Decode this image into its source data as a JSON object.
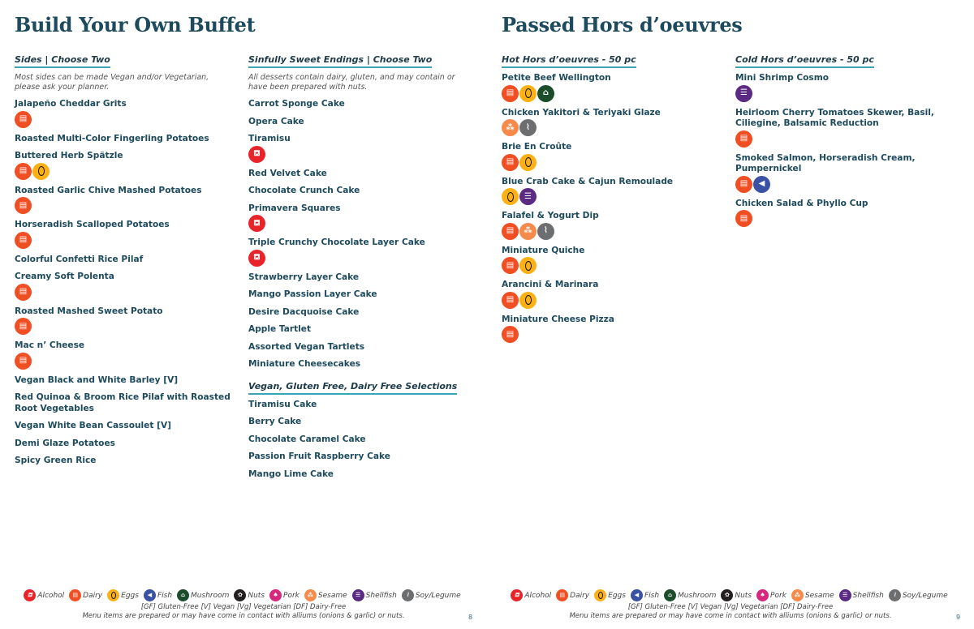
{
  "icons": {
    "alcohol": {
      "label": "Alcohol",
      "color": "#e8232a",
      "glyph": "⛾"
    },
    "dairy": {
      "label": "Dairy",
      "color": "#f04e23",
      "glyph": "▤"
    },
    "eggs": {
      "label": "Eggs",
      "color": "#fbb116",
      "glyph": ""
    },
    "fish": {
      "label": "Fish",
      "color": "#3a52a3",
      "glyph": "◀"
    },
    "mushroom": {
      "label": "Mushroom",
      "color": "#1b4d2b",
      "glyph": "⌂"
    },
    "nuts": {
      "label": "Nuts",
      "color": "#231f20",
      "glyph": "✿"
    },
    "pork": {
      "label": "Pork",
      "color": "#d6287d",
      "glyph": "♠"
    },
    "sesame": {
      "label": "Sesame",
      "color": "#f58a4b",
      "glyph": "⁂"
    },
    "shellfish": {
      "label": "Shellfish",
      "color": "#5b2a82",
      "glyph": "☰"
    },
    "soy": {
      "label": "Soy/Legume",
      "color": "#6d6e70",
      "glyph": "⌇"
    }
  },
  "legend_order": [
    "alcohol",
    "dairy",
    "eggs",
    "fish",
    "mushroom",
    "nuts",
    "pork",
    "sesame",
    "shellfish",
    "soy"
  ],
  "left_page": {
    "title": "Build Your Own Buffet",
    "page_number": "8",
    "columns": [
      {
        "sections": [
          {
            "heading": "Sides | Choose Two",
            "note": "Most sides can be made Vegan and/or Vegetarian, please ask your planner.",
            "items": [
              {
                "name": "Jalapeño Cheddar Grits",
                "icons": [
                  "dairy"
                ]
              },
              {
                "name": "Roasted Multi-Color Fingerling Potatoes",
                "icons": []
              },
              {
                "name": "Buttered Herb Spätzle",
                "icons": [
                  "dairy",
                  "eggs"
                ]
              },
              {
                "name": "Roasted Garlic Chive Mashed Potatoes",
                "icons": [
                  "dairy"
                ]
              },
              {
                "name": "Horseradish Scalloped Potatoes",
                "icons": [
                  "dairy"
                ]
              },
              {
                "name": "Colorful Confetti Rice Pilaf",
                "icons": []
              },
              {
                "name": "Creamy Soft Polenta",
                "icons": [
                  "dairy"
                ]
              },
              {
                "name": "Roasted Mashed Sweet Potato",
                "icons": [
                  "dairy"
                ]
              },
              {
                "name": "Mac n’ Cheese",
                "icons": [
                  "dairy"
                ]
              },
              {
                "name": "Vegan Black and White Barley [V]",
                "icons": []
              },
              {
                "name": "Red Quinoa & Broom Rice Pilaf with Roasted Root Vegetables",
                "icons": []
              },
              {
                "name": "Vegan White Bean Cassoulet [V]",
                "icons": []
              },
              {
                "name": "Demi Glaze Potatoes",
                "icons": []
              },
              {
                "name": "Spicy Green Rice",
                "icons": []
              }
            ]
          }
        ]
      },
      {
        "sections": [
          {
            "heading": "Sinfully Sweet Endings | Choose Two",
            "note": "All desserts contain dairy, gluten, and may contain or have been prepared with nuts.",
            "items": [
              {
                "name": "Carrot Sponge Cake",
                "icons": []
              },
              {
                "name": "Opera Cake",
                "icons": []
              },
              {
                "name": "Tiramisu",
                "icons": [
                  "alcohol"
                ]
              },
              {
                "name": "Red Velvet Cake",
                "icons": []
              },
              {
                "name": "Chocolate Crunch Cake",
                "icons": []
              },
              {
                "name": "Primavera Squares",
                "icons": [
                  "alcohol"
                ]
              },
              {
                "name": "Triple Crunchy Chocolate Layer Cake",
                "icons": [
                  "alcohol"
                ]
              },
              {
                "name": "Strawberry Layer Cake",
                "icons": []
              },
              {
                "name": "Mango Passion Layer Cake",
                "icons": []
              },
              {
                "name": "Desire Dacquoise Cake",
                "icons": []
              },
              {
                "name": "Apple Tartlet",
                "icons": []
              },
              {
                "name": "Assorted Vegan Tartlets",
                "icons": []
              },
              {
                "name": "Miniature Cheesecakes",
                "icons": []
              }
            ]
          },
          {
            "heading": "Vegan, Gluten Free, Dairy Free Selections",
            "items": [
              {
                "name": "Tiramisu Cake",
                "icons": []
              },
              {
                "name": "Berry Cake",
                "icons": []
              },
              {
                "name": "Chocolate Caramel Cake",
                "icons": []
              },
              {
                "name": "Passion Fruit Raspberry Cake",
                "icons": []
              },
              {
                "name": "Mango Lime Cake",
                "icons": []
              }
            ]
          }
        ]
      }
    ]
  },
  "right_page": {
    "title": "Passed Hors d’oeuvres",
    "page_number": "9",
    "columns": [
      {
        "sections": [
          {
            "heading": "Hot Hors d’oeuvres - 50 pc",
            "items": [
              {
                "name": "Petite Beef Wellington",
                "icons": [
                  "dairy",
                  "eggs",
                  "mushroom"
                ]
              },
              {
                "name": "Chicken Yakitori & Teriyaki Glaze",
                "icons": [
                  "sesame",
                  "soy"
                ]
              },
              {
                "name": "Brie En Croûte",
                "icons": [
                  "dairy",
                  "eggs"
                ]
              },
              {
                "name": "Blue Crab Cake & Cajun Remoulade",
                "icons": [
                  "eggs",
                  "shellfish"
                ]
              },
              {
                "name": "Falafel & Yogurt Dip",
                "icons": [
                  "dairy",
                  "sesame",
                  "soy"
                ]
              },
              {
                "name": "Miniature Quiche",
                "icons": [
                  "dairy",
                  "eggs"
                ]
              },
              {
                "name": "Arancini & Marinara",
                "icons": [
                  "dairy",
                  "eggs"
                ]
              },
              {
                "name": "Miniature Cheese Pizza",
                "icons": [
                  "dairy"
                ]
              }
            ]
          }
        ]
      },
      {
        "sections": [
          {
            "heading": "Cold Hors d’oeuvres - 50 pc",
            "items": [
              {
                "name": "Mini Shrimp Cosmo",
                "icons": [
                  "shellfish"
                ]
              },
              {
                "name": "Heirloom Cherry Tomatoes Skewer, Basil, Ciliegine, Balsamic Reduction",
                "icons": [
                  "dairy"
                ]
              },
              {
                "name": "Smoked Salmon, Horseradish Cream, Pumpernickel",
                "icons": [
                  "dairy",
                  "fish"
                ]
              },
              {
                "name": "Chicken Salad & Phyllo Cup",
                "icons": [
                  "dairy"
                ]
              }
            ]
          }
        ]
      }
    ]
  },
  "footer": {
    "diet_key": "[GF] Gluten-Free [V] Vegan [Vg] Vegetarian [DF] Dairy-Free",
    "allergen_note": "Menu items are prepared or may have come in contact with alliums (onions & garlic) or nuts."
  }
}
